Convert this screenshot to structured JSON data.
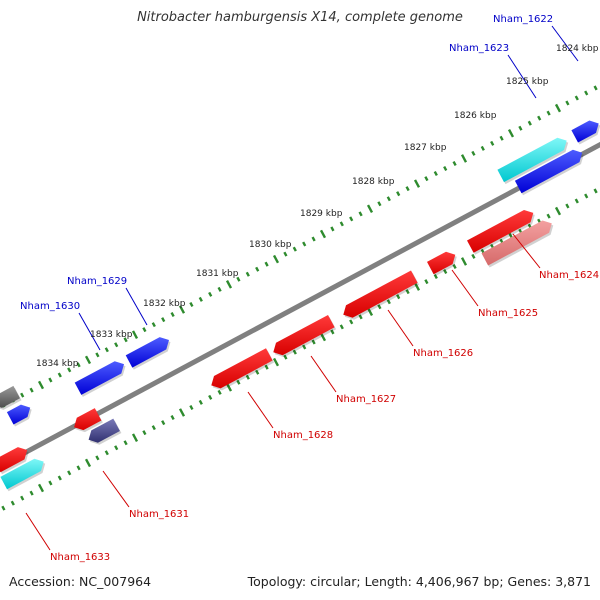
{
  "title": "Nitrobacter hamburgensis X14, complete genome",
  "footer": {
    "accession": "Accession: NC_007964",
    "summary": "Topology: circular; Length: 4,406,967 bp; Genes: 3,871"
  },
  "colors": {
    "backbone": "#808080",
    "tick": "#2e8b2e",
    "forward_gene": "#0000ff",
    "reverse_gene": "#ff0000",
    "pale_reverse_gene": "#ea8080",
    "cyan_gene": "#00e5e5",
    "gray_gene": "#707070",
    "slate_gene": "#4a4a9a",
    "forward_label": "#0000c8",
    "reverse_label": "#d00000"
  },
  "kbp_labels": [
    "1824 kbp",
    "1825 kbp",
    "1826 kbp",
    "1827 kbp",
    "1828 kbp",
    "1829 kbp",
    "1830 kbp",
    "1831 kbp",
    "1832 kbp",
    "1833 kbp",
    "1834 kbp"
  ],
  "gene_labels": {
    "forward": [
      "Nham_1622",
      "Nham_1623",
      "Nham_1629",
      "Nham_1630"
    ],
    "reverse": [
      "Nham_1624",
      "Nham_1625",
      "Nham_1626",
      "Nham_1627",
      "Nham_1628",
      "Nham_1631",
      "Nham_1633"
    ]
  }
}
